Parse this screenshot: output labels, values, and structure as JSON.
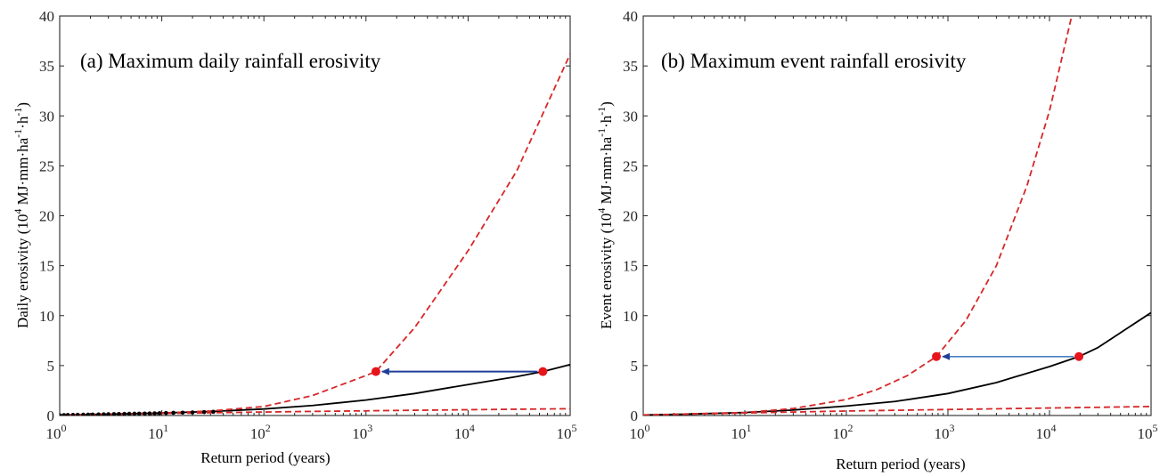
{
  "chart_data": [
    {
      "type": "line",
      "title": "(a) Maximum daily rainfall erosivity",
      "xlabel": "Return period (years)",
      "ylabel": "Daily erosivity (10^4 MJ·mm·ha^-1·h^-1)",
      "ylabel_parts": {
        "main": "Daily erosivity (10",
        "sup1": "4",
        "mid": " MJ·mm·ha",
        "sup2": "-1",
        "mid2": "·h",
        "sup3": "-1",
        "end": ")"
      },
      "x_scale": "log",
      "xlim": [
        1,
        100000
      ],
      "ylim": [
        0,
        40
      ],
      "xticks": [
        "10^0",
        "10^1",
        "10^2",
        "10^3",
        "10^4",
        "10^5"
      ],
      "yticks": [
        0,
        5,
        10,
        15,
        20,
        25,
        30,
        35,
        40
      ],
      "series": [
        {
          "style": "solid",
          "color": "#000000",
          "x": [
            1,
            2,
            5,
            10,
            30,
            100,
            300,
            1000,
            3000,
            10000,
            30000,
            54000,
            100000
          ],
          "y": [
            0.05,
            0.1,
            0.18,
            0.25,
            0.4,
            0.65,
            1.0,
            1.55,
            2.2,
            3.1,
            3.9,
            4.4,
            5.1
          ]
        },
        {
          "style": "dashed",
          "color": "#d62728",
          "x": [
            1,
            10,
            30,
            100,
            300,
            1000,
            1250,
            3000,
            10000,
            30000,
            100000
          ],
          "y": [
            0.05,
            0.25,
            0.45,
            0.9,
            2.0,
            4.0,
            4.4,
            8.8,
            16.5,
            24.5,
            36.2
          ]
        },
        {
          "style": "dashed",
          "color": "#d62728",
          "x": [
            1,
            10,
            100,
            1000,
            10000,
            100000
          ],
          "y": [
            0.04,
            0.2,
            0.35,
            0.47,
            0.58,
            0.68
          ]
        }
      ],
      "observations": {
        "color": "#000000",
        "x": [
          1,
          1.1,
          1.2,
          1.35,
          1.5,
          1.7,
          1.9,
          2.1,
          2.4,
          2.7,
          3.0,
          3.4,
          3.8,
          4.3,
          4.8,
          5.4,
          6.0,
          6.8,
          7.6,
          8.5,
          9.5,
          11,
          13,
          16,
          20,
          26,
          32
        ],
        "y": [
          0.03,
          0.04,
          0.05,
          0.06,
          0.07,
          0.08,
          0.09,
          0.1,
          0.11,
          0.12,
          0.13,
          0.14,
          0.15,
          0.16,
          0.17,
          0.18,
          0.19,
          0.2,
          0.21,
          0.22,
          0.23,
          0.25,
          0.27,
          0.29,
          0.31,
          0.34,
          0.37
        ]
      },
      "markers": [
        {
          "x": 1250,
          "y": 4.4,
          "color": "#e8141b"
        },
        {
          "x": 54000,
          "y": 4.4,
          "color": "#e8141b"
        }
      ],
      "arrow": {
        "from": [
          54000,
          4.4
        ],
        "to": [
          1250,
          4.4
        ],
        "color": "#1f3d99"
      }
    },
    {
      "type": "line",
      "title": "(b) Maximum event rainfall erosivity",
      "xlabel": "Return period (years)",
      "ylabel": "Event erosivity (10^4 MJ·mm·ha^-1·h^-1)",
      "ylabel_parts": {
        "main": "Event erosivity (10",
        "sup1": "4",
        "mid": " MJ·mm·ha",
        "sup2": "-1",
        "mid2": "·h",
        "sup3": "-1",
        "end": ")"
      },
      "x_scale": "log",
      "xlim": [
        1,
        100000
      ],
      "ylim": [
        0,
        40
      ],
      "xticks": [
        "10^0",
        "10^1",
        "10^2",
        "10^3",
        "10^4",
        "10^5"
      ],
      "yticks": [
        0,
        5,
        10,
        15,
        20,
        25,
        30,
        35,
        40
      ],
      "series": [
        {
          "style": "solid",
          "color": "#000000",
          "x": [
            1,
            3,
            10,
            30,
            100,
            300,
            1000,
            3000,
            10000,
            19500,
            30000,
            100000
          ],
          "y": [
            0.05,
            0.15,
            0.3,
            0.55,
            0.95,
            1.4,
            2.2,
            3.3,
            4.9,
            5.9,
            6.8,
            10.3
          ]
        },
        {
          "style": "dashed",
          "color": "#d62728",
          "x": [
            1,
            10,
            30,
            100,
            200,
            400,
            770,
            1500,
            3000,
            6000,
            10000,
            17000
          ],
          "y": [
            0.05,
            0.3,
            0.7,
            1.6,
            2.6,
            4.0,
            5.9,
            9.5,
            15.0,
            23.0,
            30.5,
            40.5
          ]
        },
        {
          "style": "dashed",
          "color": "#d62728",
          "x": [
            1,
            10,
            100,
            1000,
            10000,
            100000
          ],
          "y": [
            0.05,
            0.25,
            0.45,
            0.6,
            0.75,
            0.9
          ]
        }
      ],
      "markers": [
        {
          "x": 770,
          "y": 5.9,
          "color": "#e8141b"
        },
        {
          "x": 19500,
          "y": 5.9,
          "color": "#e8141b"
        }
      ],
      "arrow": {
        "from": [
          19500,
          5.9
        ],
        "to": [
          770,
          5.9
        ],
        "color": "#4a7fc1"
      }
    }
  ]
}
